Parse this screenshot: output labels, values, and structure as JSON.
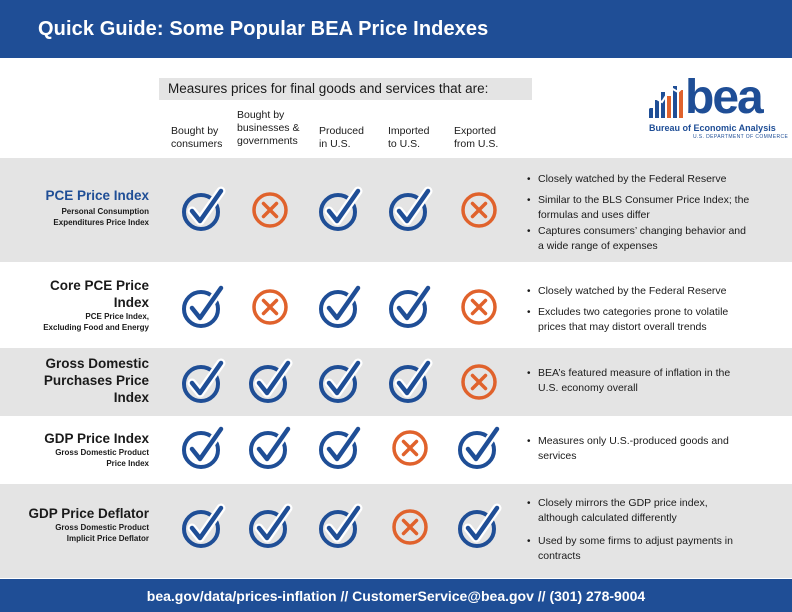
{
  "header": {
    "title": "Quick Guide: Some Popular BEA Price Indexes"
  },
  "logo": {
    "word": "bea",
    "name": "Bureau of Economic Analysis",
    "dept": "U.S. DEPARTMENT OF COMMERCE"
  },
  "measures_label": "Measures prices for final goods and services that are:",
  "columns": [
    {
      "l1": "Bought by",
      "l2": "consumers",
      "l3": ""
    },
    {
      "l1": "Bought by",
      "l2": "businesses &",
      "l3": "governments"
    },
    {
      "l1": "Produced",
      "l2": "in U.S.",
      "l3": ""
    },
    {
      "l1": "Imported",
      "l2": "to  U.S.",
      "l3": ""
    },
    {
      "l1": "Exported",
      "l2": "from U.S.",
      "l3": ""
    }
  ],
  "rows": [
    {
      "title_lines": [
        "PCE Price Index"
      ],
      "sub_lines": [
        "Personal Consumption",
        "Expenditures Price Index"
      ],
      "marks": [
        "check",
        "x",
        "check",
        "check",
        "x"
      ],
      "bullets": [
        [
          "Closely watched by the Federal Reserve"
        ],
        [
          "Similar to the BLS Consumer Price Index; the",
          "formulas and uses differ"
        ],
        [
          "Captures consumers’ changing behavior and",
          "a wide range of expenses"
        ]
      ]
    },
    {
      "title_lines": [
        "Core PCE Price",
        "Index"
      ],
      "sub_lines": [
        "PCE Price Index,",
        "Excluding Food and Energy"
      ],
      "marks": [
        "check",
        "x",
        "check",
        "check",
        "x"
      ],
      "bullets": [
        [
          "Closely watched by the Federal Reserve"
        ],
        [
          "Excludes two categories prone to volatile",
          "prices that may distort overall trends"
        ]
      ]
    },
    {
      "title_lines": [
        "Gross Domestic",
        "Purchases Price",
        "Index"
      ],
      "sub_lines": [],
      "marks": [
        "check",
        "check",
        "check",
        "check",
        "x"
      ],
      "bullets": [
        [
          "BEA’s featured measure of inflation in the",
          "U.S. economy overall"
        ]
      ]
    },
    {
      "title_lines": [
        "GDP Price Index"
      ],
      "sub_lines": [
        "Gross Domestic Product",
        "Price Index"
      ],
      "marks": [
        "check",
        "check",
        "check",
        "x",
        "check"
      ],
      "bullets": [
        [
          "Measures only U.S.-produced goods and",
          "services"
        ]
      ]
    },
    {
      "title_lines": [
        "GDP Price Deflator"
      ],
      "sub_lines": [
        "Gross Domestic Product",
        "Implicit Price Deflator"
      ],
      "marks": [
        "check",
        "check",
        "check",
        "x",
        "check"
      ],
      "bullets": [
        [
          "Closely mirrors the GDP price index,",
          "although calculated differently"
        ],
        [
          "Used by some firms to adjust payments in",
          "contracts"
        ]
      ]
    }
  ],
  "icons": {
    "check": "check-circle-icon",
    "x": "x-circle-icon"
  },
  "colors": {
    "brand_blue": "#1f4e96",
    "check_blue": "#1f4e96",
    "x_orange": "#e0622c",
    "band_gray": "#e4e4e4"
  },
  "footer": {
    "text": "bea.gov/data/prices-inflation // CustomerService@bea.gov // (301) 278-9004"
  }
}
